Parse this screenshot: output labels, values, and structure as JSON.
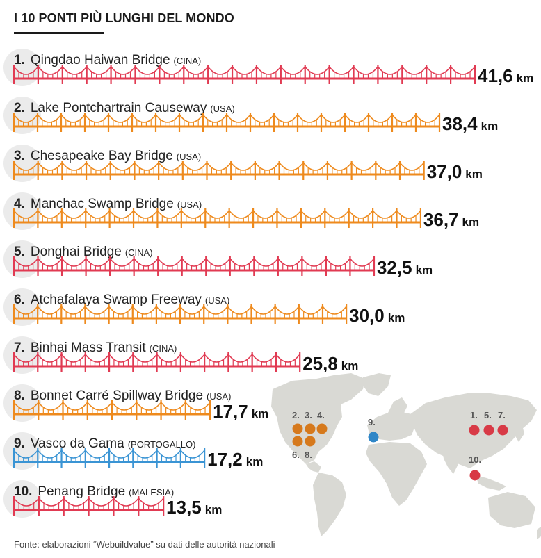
{
  "title": "I 10 PONTI PIÙ LUNGHI DEL MONDO",
  "source": "Fonte: elaborazioni “Webuildvalue” su dati delle autorità nazionali",
  "colors": {
    "red": "#e13a52",
    "orange": "#ee8a1d",
    "blue": "#3a94d4",
    "circle": "#ebebeb",
    "land": "#d9d9d4",
    "dot_red": "#d83a46",
    "dot_orange": "#d6791c",
    "dot_blue": "#2f86c7"
  },
  "chart_data": {
    "type": "bar",
    "unit": "km",
    "bars": [
      {
        "rank": "1.",
        "name": "Qingdao Haiwan Bridge",
        "country": "(CINA)",
        "value": 41.6,
        "value_label": "41,6",
        "color": "red"
      },
      {
        "rank": "2.",
        "name": "Lake Pontchartrain Causeway",
        "country": "(USA)",
        "value": 38.4,
        "value_label": "38,4",
        "color": "orange"
      },
      {
        "rank": "3.",
        "name": "Chesapeake Bay Bridge",
        "country": "(USA)",
        "value": 37.0,
        "value_label": "37,0",
        "color": "orange"
      },
      {
        "rank": "4.",
        "name": "Manchac Swamp Bridge",
        "country": "(USA)",
        "value": 36.7,
        "value_label": "36,7",
        "color": "orange"
      },
      {
        "rank": "5.",
        "name": "Donghai Bridge",
        "country": "(CINA)",
        "value": 32.5,
        "value_label": "32,5",
        "color": "red"
      },
      {
        "rank": "6.",
        "name": "Atchafalaya Swamp Freeway",
        "country": "(USA)",
        "value": 30.0,
        "value_label": "30,0",
        "color": "orange"
      },
      {
        "rank": "7.",
        "name": "Binhai Mass Transit",
        "country": "(CINA)",
        "value": 25.8,
        "value_label": "25,8",
        "color": "red"
      },
      {
        "rank": "8.",
        "name": "Bonnet Carré Spillway Bridge",
        "country": "(USA)",
        "value": 17.7,
        "value_label": "17,7",
        "color": "orange"
      },
      {
        "rank": "9.",
        "name": "Vasco da Gama",
        "country": "(PORTOGALLO)",
        "value": 17.2,
        "value_label": "17,2",
        "color": "blue"
      },
      {
        "rank": "10.",
        "name": "Penang Bridge",
        "country": "(MALESIA)",
        "value": 13.5,
        "value_label": "13,5",
        "color": "red"
      }
    ],
    "map_labels": [
      {
        "text": "2.",
        "group": "usa"
      },
      {
        "text": "3.",
        "group": "usa"
      },
      {
        "text": "4.",
        "group": "usa"
      },
      {
        "text": "6.",
        "group": "usa"
      },
      {
        "text": "8.",
        "group": "usa"
      },
      {
        "text": "9.",
        "group": "portugal"
      },
      {
        "text": "1.",
        "group": "china"
      },
      {
        "text": "5.",
        "group": "china"
      },
      {
        "text": "7.",
        "group": "china"
      },
      {
        "text": "10.",
        "group": "malaysia"
      }
    ]
  }
}
